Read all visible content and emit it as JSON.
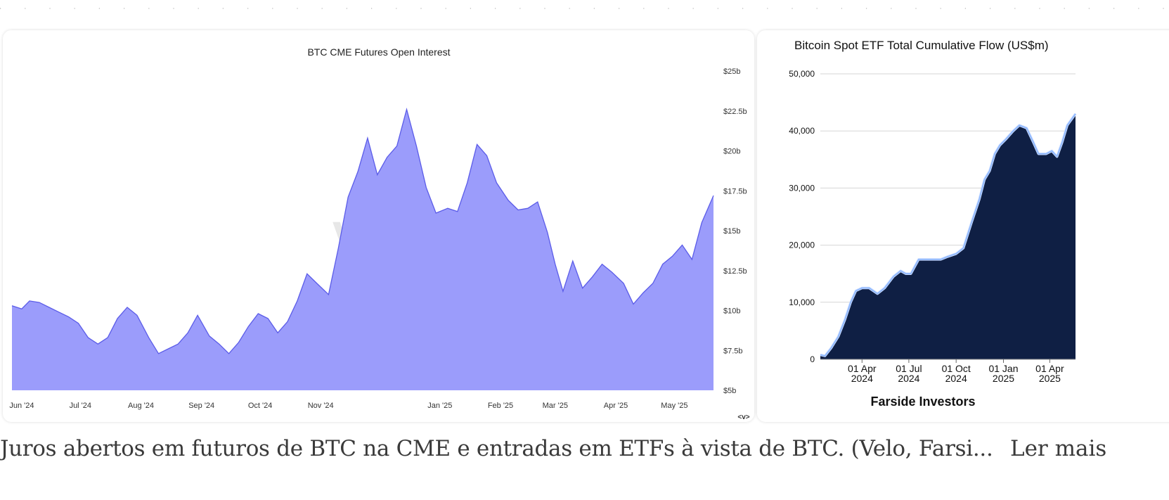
{
  "chart_data": [
    {
      "type": "area",
      "title": "BTC CME Futures Open Interest",
      "watermark": "velo",
      "x_ticks": [
        "Jun '24",
        "Jul '24",
        "Aug '24",
        "Sep '24",
        "Oct '24",
        "Nov '24",
        "Jan '25",
        "Feb '25",
        "Mar '25",
        "Apr '25",
        "May '25"
      ],
      "x_range": [
        "2024-05-27",
        "2025-05-21"
      ],
      "y_ticks": [
        "$5b",
        "$7.5b",
        "$10b",
        "$12.5b",
        "$15b",
        "$17.5b",
        "$20b",
        "$22.5b",
        "$25b"
      ],
      "ylim": [
        5,
        25
      ],
      "y_unit": "$b",
      "fill_color": "#9b9cfb",
      "line_color": "#5b5ce8",
      "series": [
        {
          "x": [
            "2024-05-27",
            "2024-06-01",
            "2024-06-05",
            "2024-06-10",
            "2024-06-15",
            "2024-06-20",
            "2024-06-25",
            "2024-06-30",
            "2024-07-05",
            "2024-07-10",
            "2024-07-15",
            "2024-07-20",
            "2024-07-25",
            "2024-07-30",
            "2024-08-05",
            "2024-08-10",
            "2024-08-15",
            "2024-08-20",
            "2024-08-25",
            "2024-08-30",
            "2024-09-05",
            "2024-09-10",
            "2024-09-15",
            "2024-09-20",
            "2024-09-25",
            "2024-09-30",
            "2024-10-05",
            "2024-10-10",
            "2024-10-15",
            "2024-10-20",
            "2024-10-25",
            "2024-10-30",
            "2024-11-05",
            "2024-11-10",
            "2024-11-15",
            "2024-11-20",
            "2024-11-25",
            "2024-11-30",
            "2024-12-05",
            "2024-12-10",
            "2024-12-15",
            "2024-12-20",
            "2024-12-25",
            "2024-12-30",
            "2025-01-05",
            "2025-01-10",
            "2025-01-15",
            "2025-01-20",
            "2025-01-25",
            "2025-01-30",
            "2025-02-05",
            "2025-02-10",
            "2025-02-15",
            "2025-02-20",
            "2025-02-25",
            "2025-03-01",
            "2025-03-05",
            "2025-03-10",
            "2025-03-15",
            "2025-03-20",
            "2025-03-25",
            "2025-03-30",
            "2025-04-05",
            "2025-04-10",
            "2025-04-15",
            "2025-04-20",
            "2025-04-25",
            "2025-04-30",
            "2025-05-05",
            "2025-05-10",
            "2025-05-15",
            "2025-05-21"
          ],
          "values": [
            10.3,
            10.1,
            10.6,
            10.5,
            10.2,
            9.9,
            9.6,
            9.2,
            8.3,
            7.9,
            8.3,
            9.5,
            10.2,
            9.7,
            8.3,
            7.3,
            7.6,
            7.9,
            8.6,
            9.7,
            8.4,
            7.9,
            7.3,
            8.0,
            9.0,
            9.8,
            9.5,
            8.6,
            9.3,
            10.6,
            12.3,
            11.7,
            11.0,
            13.9,
            17.1,
            18.7,
            20.8,
            18.5,
            19.6,
            20.3,
            22.6,
            20.3,
            17.7,
            16.1,
            16.4,
            16.2,
            18.0,
            20.4,
            19.7,
            18.0,
            16.9,
            16.3,
            16.4,
            16.8,
            14.9,
            12.9,
            11.2,
            13.1,
            11.4,
            12.1,
            12.9,
            12.4,
            11.7,
            10.4,
            11.1,
            11.7,
            12.9,
            13.4,
            14.1,
            13.2,
            15.5,
            17.2
          ]
        }
      ],
      "corner_label": "<v>"
    },
    {
      "type": "area",
      "title": "Bitcoin Spot ETF Total Cumulative Flow (US$m)",
      "source": "Farside Investors",
      "x_ticks": [
        {
          "line1": "01 Apr",
          "line2": "2024"
        },
        {
          "line1": "01 Jul",
          "line2": "2024"
        },
        {
          "line1": "01 Oct",
          "line2": "2024"
        },
        {
          "line1": "01 Jan",
          "line2": "2025"
        },
        {
          "line1": "01 Apr",
          "line2": "2025"
        }
      ],
      "x_range": [
        "2024-01-11",
        "2025-05-21"
      ],
      "y_ticks": [
        "0",
        "10,000",
        "20,000",
        "30,000",
        "40,000",
        "50,000"
      ],
      "ylim": [
        0,
        50000
      ],
      "grid": true,
      "fill_color": "#0f1f44",
      "line_color": "#8ab4ff",
      "series": [
        {
          "x": [
            "2024-01-11",
            "2024-01-20",
            "2024-02-01",
            "2024-02-15",
            "2024-02-28",
            "2024-03-10",
            "2024-03-20",
            "2024-04-01",
            "2024-04-15",
            "2024-05-01",
            "2024-05-15",
            "2024-06-01",
            "2024-06-15",
            "2024-06-25",
            "2024-07-05",
            "2024-07-20",
            "2024-08-01",
            "2024-08-15",
            "2024-09-01",
            "2024-09-15",
            "2024-10-01",
            "2024-10-15",
            "2024-10-31",
            "2024-11-15",
            "2024-11-25",
            "2024-12-05",
            "2024-12-15",
            "2024-12-25",
            "2025-01-05",
            "2025-01-20",
            "2025-02-01",
            "2025-02-15",
            "2025-02-28",
            "2025-03-10",
            "2025-03-25",
            "2025-04-05",
            "2025-04-15",
            "2025-04-25",
            "2025-05-05",
            "2025-05-21"
          ],
          "values": [
            800,
            600,
            2000,
            4000,
            7000,
            10000,
            12000,
            12500,
            12500,
            11500,
            12500,
            14500,
            15500,
            15000,
            15000,
            17500,
            17500,
            17500,
            17500,
            18000,
            18500,
            19500,
            24000,
            28000,
            31500,
            33000,
            36000,
            37500,
            38500,
            40000,
            41000,
            40500,
            38000,
            36000,
            36000,
            36500,
            35500,
            38000,
            41000,
            43000
          ]
        }
      ]
    }
  ],
  "caption": {
    "text": "Juros abertos em futuros de BTC na CME e entradas em ETFs à vista de BTC. (Velo, Farsi...",
    "read_more": "Ler mais"
  }
}
